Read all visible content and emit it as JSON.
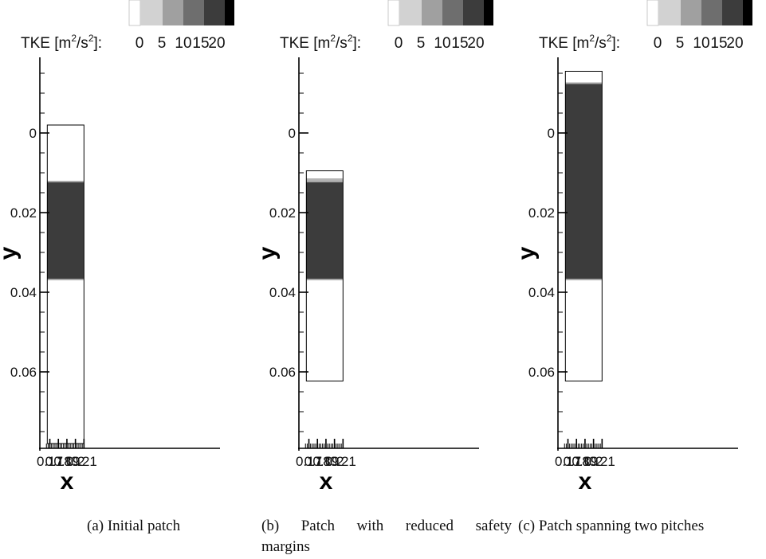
{
  "chart_data": [
    {
      "type": "heatmap",
      "xlabel": "x",
      "ylabel": "y",
      "xlim": [
        0.166,
        0.212
      ],
      "ylim": [
        0.0795,
        -0.016
      ],
      "x_ticks": [
        0.17,
        0.18,
        0.19,
        0.2,
        0.21
      ],
      "x_tick_labels": [
        "0.17",
        "0.18",
        "0.19",
        "0.2",
        "0.21"
      ],
      "y_ticks": [
        0,
        0.02,
        0.04,
        0.06
      ],
      "y_tick_labels": [
        "0",
        "0.02",
        "0.04",
        "0.06"
      ],
      "colorbar": {
        "label": "TKE [m²/s²]:",
        "tick_labels": [
          "0",
          "5",
          "10",
          "15",
          "20"
        ],
        "levels": [
          0,
          5,
          10,
          15,
          20,
          25
        ],
        "colors": [
          "#ffffff",
          "#d2d2d2",
          "#a0a0a0",
          "#6e6e6e",
          "#3c3c3c",
          "#000000"
        ]
      },
      "patch": {
        "x_range": [
          0.167,
          0.21
        ],
        "y_range": [
          -0.002,
          0.078
        ]
      },
      "regions": [
        {
          "y_range": [
            -0.002,
            0.0122
          ],
          "tke_level": "0-5",
          "color": "#ffffff"
        },
        {
          "y_range": [
            0.0122,
            0.0368
          ],
          "tke_level": "15-20",
          "color": "#3c3c3c"
        },
        {
          "y_range": [
            0.0368,
            0.078
          ],
          "tke_level": "0-5",
          "color": "#ffffff"
        }
      ],
      "caption": "(a)  Initial patch"
    },
    {
      "type": "heatmap",
      "xlabel": "x",
      "ylabel": "y",
      "xlim": [
        0.166,
        0.212
      ],
      "ylim": [
        0.0795,
        -0.016
      ],
      "x_ticks": [
        0.17,
        0.18,
        0.19,
        0.2,
        0.21
      ],
      "x_tick_labels": [
        "0.17",
        "0.18",
        "0.19",
        "0.2",
        "0.21"
      ],
      "y_ticks": [
        0,
        0.02,
        0.04,
        0.06
      ],
      "y_tick_labels": [
        "0",
        "0.02",
        "0.04",
        "0.06"
      ],
      "colorbar": {
        "label": "TKE [m²/s²]:",
        "tick_labels": [
          "0",
          "5",
          "10",
          "15",
          "20"
        ],
        "levels": [
          0,
          5,
          10,
          15,
          20,
          25
        ],
        "colors": [
          "#ffffff",
          "#d2d2d2",
          "#a0a0a0",
          "#6e6e6e",
          "#3c3c3c",
          "#000000"
        ]
      },
      "patch": {
        "x_range": [
          0.167,
          0.21
        ],
        "y_range": [
          0.0095,
          0.0623
        ]
      },
      "regions": [
        {
          "y_range": [
            0.0095,
            0.0114
          ],
          "tke_level": "0-5",
          "color": "#ffffff"
        },
        {
          "y_range": [
            0.0114,
            0.0122
          ],
          "tke_level": "5-10",
          "color": "#b4b4b4"
        },
        {
          "y_range": [
            0.0122,
            0.0368
          ],
          "tke_level": "15-20",
          "color": "#3c3c3c"
        },
        {
          "y_range": [
            0.0368,
            0.0623
          ],
          "tke_level": "0-5",
          "color": "#ffffff"
        }
      ],
      "caption": "(b)  Patch with reduced safety margins"
    },
    {
      "type": "heatmap",
      "xlabel": "x",
      "ylabel": "y",
      "xlim": [
        0.166,
        0.212
      ],
      "ylim": [
        0.0795,
        -0.016
      ],
      "x_ticks": [
        0.17,
        0.18,
        0.19,
        0.2,
        0.21
      ],
      "x_tick_labels": [
        "0.17",
        "0.18",
        "0.19",
        "0.2",
        "0.21"
      ],
      "y_ticks": [
        0,
        0.02,
        0.04,
        0.06
      ],
      "y_tick_labels": [
        "0",
        "0.02",
        "0.04",
        "0.06"
      ],
      "colorbar": {
        "label": "TKE [m²/s²]:",
        "tick_labels": [
          "0",
          "5",
          "10",
          "15",
          "20"
        ],
        "levels": [
          0,
          5,
          10,
          15,
          20,
          25
        ],
        "colors": [
          "#ffffff",
          "#d2d2d2",
          "#a0a0a0",
          "#6e6e6e",
          "#3c3c3c",
          "#000000"
        ]
      },
      "patch": {
        "x_range": [
          0.167,
          0.21
        ],
        "y_range": [
          -0.0155,
          0.0623
        ]
      },
      "regions": [
        {
          "y_range": [
            -0.0155,
            -0.0125
          ],
          "tke_level": "0-5",
          "color": "#ffffff"
        },
        {
          "y_range": [
            -0.0125,
            0.0368
          ],
          "tke_level": "15-20",
          "color": "#3c3c3c"
        },
        {
          "y_range": [
            0.0368,
            0.0623
          ],
          "tke_level": "0-5",
          "color": "#ffffff"
        }
      ],
      "caption": "(c)  Patch spanning two pitches"
    }
  ],
  "captions": {
    "a": "(a)  Initial patch",
    "b_line1": [
      "(b)",
      "Patch",
      "with",
      "reduced",
      "safety"
    ],
    "b_line2": "margins",
    "c": "(c)  Patch spanning two pitches"
  }
}
